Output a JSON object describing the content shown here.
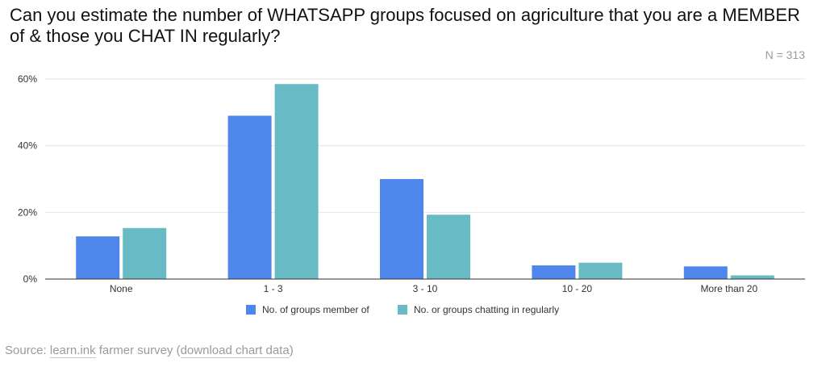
{
  "chart_data": {
    "type": "bar",
    "title": "Can you estimate the number of WHATSAPP groups focused on agriculture that you are a MEMBER of & those you CHAT IN regularly?",
    "note": "N = 313",
    "categories": [
      "None",
      "1 - 3",
      "3 - 10",
      "10 - 20",
      "More than 20"
    ],
    "series": [
      {
        "name": "No. of groups member of",
        "color": "#4f86ec",
        "values": [
          12.8,
          49.0,
          30.0,
          4.1,
          3.8
        ]
      },
      {
        "name": "No. or groups chatting in regularly",
        "color": "#68bbc4",
        "values": [
          15.3,
          58.5,
          19.3,
          4.9,
          1.1
        ]
      }
    ],
    "ylim": [
      0,
      60
    ],
    "yticks": [
      0,
      20,
      40,
      60
    ],
    "ytick_labels": [
      "0%",
      "20%",
      "40%",
      "60%"
    ],
    "grid": true,
    "legend": "bottom",
    "xlabel": "",
    "ylabel": ""
  },
  "source": {
    "prefix": "Source: ",
    "link1": "learn.ink",
    "middle": " farmer survey (",
    "link2": "download chart data",
    "suffix": ")"
  }
}
